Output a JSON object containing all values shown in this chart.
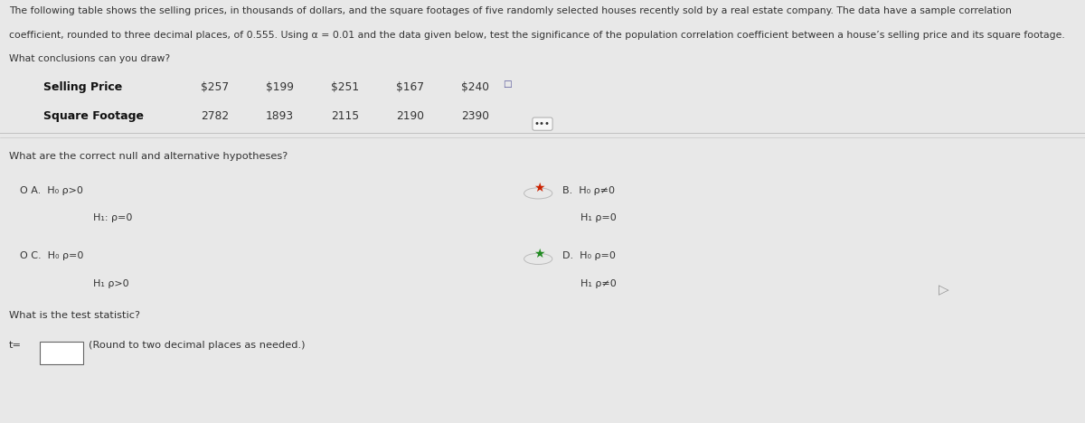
{
  "bg_color": "#e8e8e8",
  "content_bg": "#f5f5f5",
  "header_line1": "The following table shows the selling prices, in thousands of dollars, and the square footages of five randomly selected houses recently sold by a real estate company. The data have a sample correlation",
  "header_line2": "coefficient, rounded to three decimal places, of 0.555. Using α = 0.01 and the data given below, test the significance of the population correlation coefficient between a house’s selling price and its square footage.",
  "header_line3": "What conclusions can you draw?",
  "table_label_col1": "Selling Price",
  "table_label_col2": "Square Footage",
  "selling_prices": [
    "$257",
    "$199",
    "$251",
    "$167",
    "$240"
  ],
  "square_footages": [
    "2782",
    "1893",
    "2115",
    "2190",
    "2390"
  ],
  "dots_text": "•••",
  "question1": "What are the correct null and alternative hypotheses?",
  "optA_h0": "H₀ ρ>0",
  "optA_h1": "H₁: ρ=0",
  "optB_h0": "H₀ ρ≠0",
  "optB_h1": "H₁ ρ=0",
  "optC_h0": "H₀ ρ=0",
  "optC_h1": "H₁ ρ>0",
  "optD_h0": "H₀ ρ=0",
  "optD_h1": "H₁ ρ≠0",
  "question2": "What is the test statistic?",
  "t_label": "t=",
  "round_note": "(Round to two decimal places as needed.)",
  "star_color_B": "#cc2200",
  "star_color_D": "#228B22",
  "text_color": "#333333",
  "label_color": "#111111",
  "font_size_header": 7.8,
  "font_size_body": 8.2,
  "font_size_table_label": 9.0,
  "font_size_table_data": 8.8,
  "font_size_options": 8.0
}
